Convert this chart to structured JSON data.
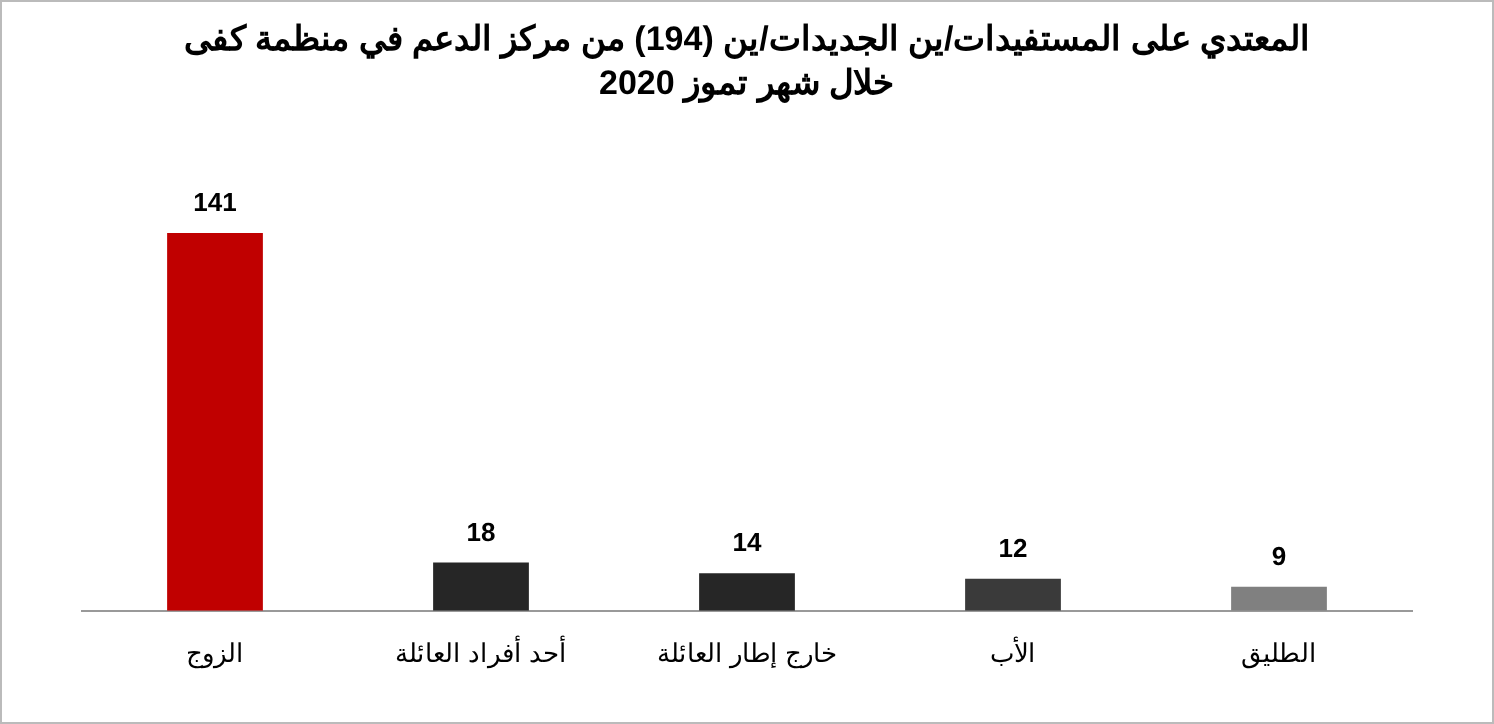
{
  "chart_data": {
    "type": "bar",
    "title": "المعتدي على المستفيدات/ين الجديدات/ين (194) من مركز الدعم في منظمة كفى\nخلال شهر تموز 2020",
    "categories": [
      "الزوج",
      "أحد أفراد العائلة",
      "خارج إطار العائلة",
      "الأب",
      "الطليق"
    ],
    "values": [
      141,
      18,
      14,
      12,
      9
    ],
    "colors": [
      "#c00000",
      "#262626",
      "#262626",
      "#3a3a3a",
      "#808080"
    ],
    "data_labels": true,
    "grid": false,
    "legend": false
  }
}
